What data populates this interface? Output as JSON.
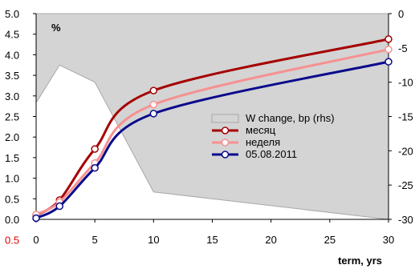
{
  "chart_data": {
    "type": "line",
    "unit_label": "%",
    "xlabel": "term, yrs",
    "xlim": [
      0,
      30
    ],
    "x_ticks": [
      "0",
      "5",
      "10",
      "15",
      "20",
      "25",
      "30"
    ],
    "ylim_left": [
      0.0,
      5.0
    ],
    "y_ticks_left": [
      "5.0",
      "4.5",
      "4.0",
      "3.5",
      "3.0",
      "2.5",
      "2.0",
      "1.5",
      "1.0",
      "0.5",
      "0.0"
    ],
    "y_tick_below_axis": "0.5",
    "ylim_right": [
      -30,
      0
    ],
    "y_ticks_right": [
      "0",
      "-5",
      "-10",
      "-15",
      "-20",
      "-25",
      "-30"
    ],
    "grid": false,
    "legend_position": "center-right",
    "area_series": {
      "name": "W change, bp (rhs)",
      "axis": "right",
      "color": "#d4d4d4",
      "x": [
        0,
        2,
        5,
        10,
        30
      ],
      "y": [
        -13.0,
        -7.5,
        -10.0,
        -26.0,
        -30.0
      ]
    },
    "series": [
      {
        "name": "месяц",
        "color": "#a50000",
        "x": [
          0,
          2,
          5,
          10,
          30
        ],
        "y": [
          0.1,
          0.47,
          1.71,
          3.13,
          4.38
        ]
      },
      {
        "name": "неделя",
        "color": "#f69191",
        "x": [
          0,
          2,
          5,
          10,
          30
        ],
        "y": [
          0.12,
          0.42,
          1.37,
          2.79,
          4.13
        ]
      },
      {
        "name": "05.08.2011",
        "color": "#0a0a8c",
        "x": [
          0,
          2,
          5,
          10,
          30
        ],
        "y": [
          0.03,
          0.32,
          1.25,
          2.57,
          3.83
        ]
      }
    ]
  }
}
